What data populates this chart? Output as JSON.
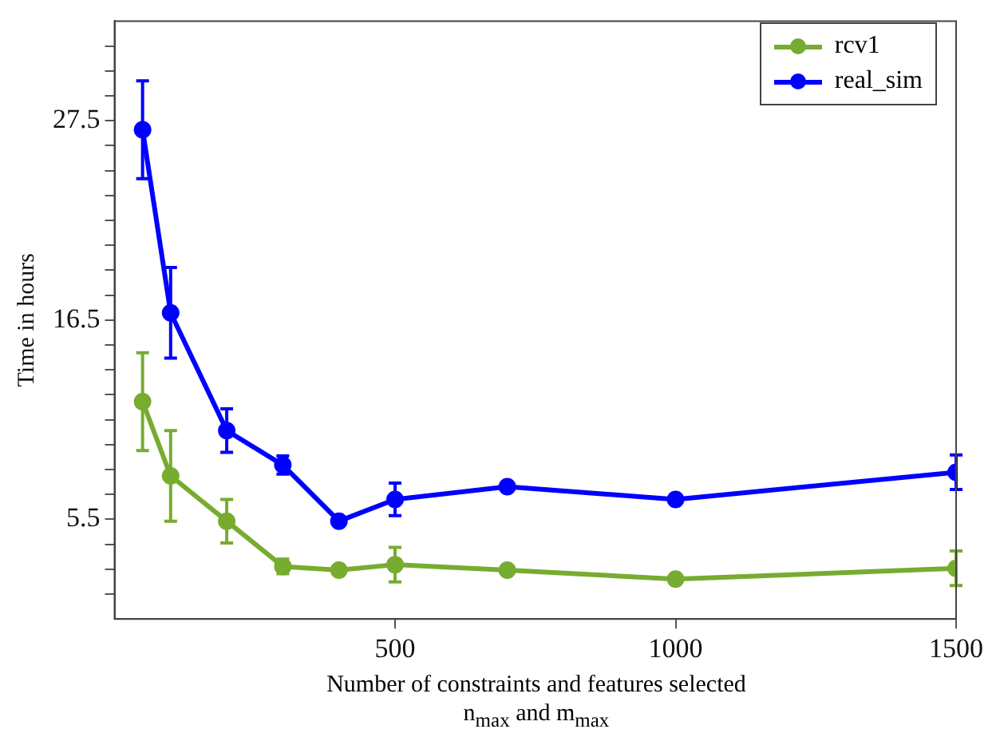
{
  "chart_data": {
    "type": "line",
    "xlabel": "Number of constraints and features selected\nn$_{max}$ and m$_{max}$",
    "ylabel": "Time in hours",
    "x": [
      50,
      100,
      200,
      300,
      400,
      500,
      700,
      1000,
      1500
    ],
    "xlim": [
      0,
      1500
    ],
    "xticks": [
      500,
      1000,
      1500
    ],
    "ylim": [
      0,
      33
    ],
    "yticks": [
      {
        "value": 1.375,
        "label": null
      },
      {
        "value": 2.75,
        "label": null
      },
      {
        "value": 4.125,
        "label": null
      },
      5.5,
      {
        "value": 6.875,
        "label": null
      },
      {
        "value": 8.25,
        "label": null
      },
      {
        "value": 9.625,
        "label": null
      },
      {
        "value": 11,
        "label": null
      },
      {
        "value": 12.375,
        "label": null
      },
      {
        "value": 13.75,
        "label": null
      },
      {
        "value": 15.125,
        "label": null
      },
      16.5,
      {
        "value": 17.875,
        "label": null
      },
      {
        "value": 19.25,
        "label": null
      },
      {
        "value": 20.625,
        "label": null
      },
      {
        "value": 22,
        "label": null
      },
      {
        "value": 23.375,
        "label": null
      },
      {
        "value": 24.75,
        "label": null
      },
      {
        "value": 26.125,
        "label": null
      },
      27.5,
      {
        "value": 28.875,
        "label": null
      },
      {
        "value": 30.25,
        "label": null
      },
      {
        "value": 31.625,
        "label": null
      }
    ],
    "series": [
      {
        "name": "rcv1",
        "color": "#77ac30",
        "values": [
          12.0,
          7.9,
          5.4,
          2.9,
          2.7,
          3.0,
          2.7,
          2.2,
          2.8
        ],
        "errors": [
          2.7,
          2.5,
          1.2,
          0.4,
          null,
          0.95,
          null,
          null,
          0.95
        ]
      },
      {
        "name": "real_sim",
        "color": "#0000ff",
        "values": [
          27.0,
          16.9,
          10.4,
          8.5,
          5.4,
          6.6,
          7.3,
          6.6,
          8.1
        ],
        "errors": [
          2.7,
          2.5,
          1.2,
          0.5,
          null,
          0.9,
          null,
          null,
          0.95
        ]
      }
    ],
    "grid": false,
    "legend": "top right",
    "marker": "circle",
    "line_style": "solid"
  }
}
